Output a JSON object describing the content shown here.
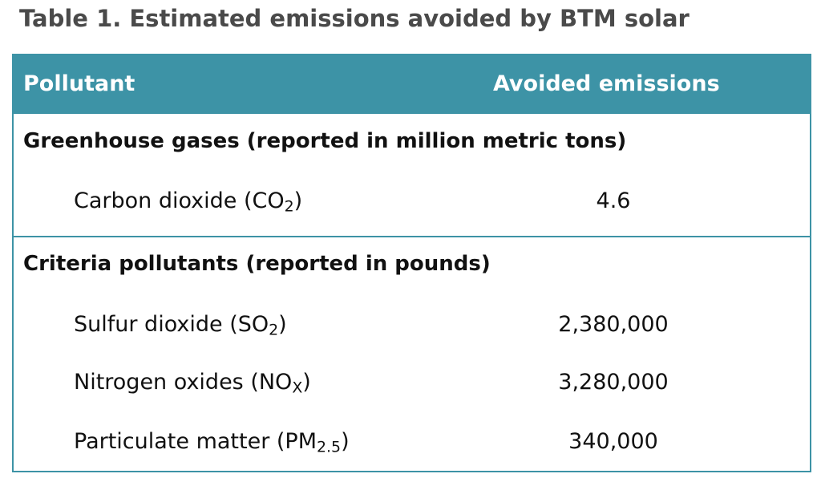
{
  "title": "Table 1. Estimated emissions avoided by BTM solar",
  "table": {
    "header": {
      "pollutant": "Pollutant",
      "avoided": "Avoided emissions"
    },
    "groups": [
      {
        "label": "Greenhouse gases (reported in million metric tons)",
        "rows": [
          {
            "name": "Carbon dioxide (CO",
            "sub": "2",
            "close": ")",
            "value": "4.6"
          }
        ]
      },
      {
        "label": "Criteria pollutants (reported in pounds)",
        "rows": [
          {
            "name": "Sulfur dioxide (SO",
            "sub": "2",
            "close": ")",
            "value": "2,380,000"
          },
          {
            "name": "Nitrogen oxides (NO",
            "sub": "X",
            "close": ")",
            "value": "3,280,000"
          },
          {
            "name": "Particulate matter (PM",
            "sub": "2.5",
            "close": ")",
            "value": "340,000"
          }
        ]
      }
    ]
  }
}
